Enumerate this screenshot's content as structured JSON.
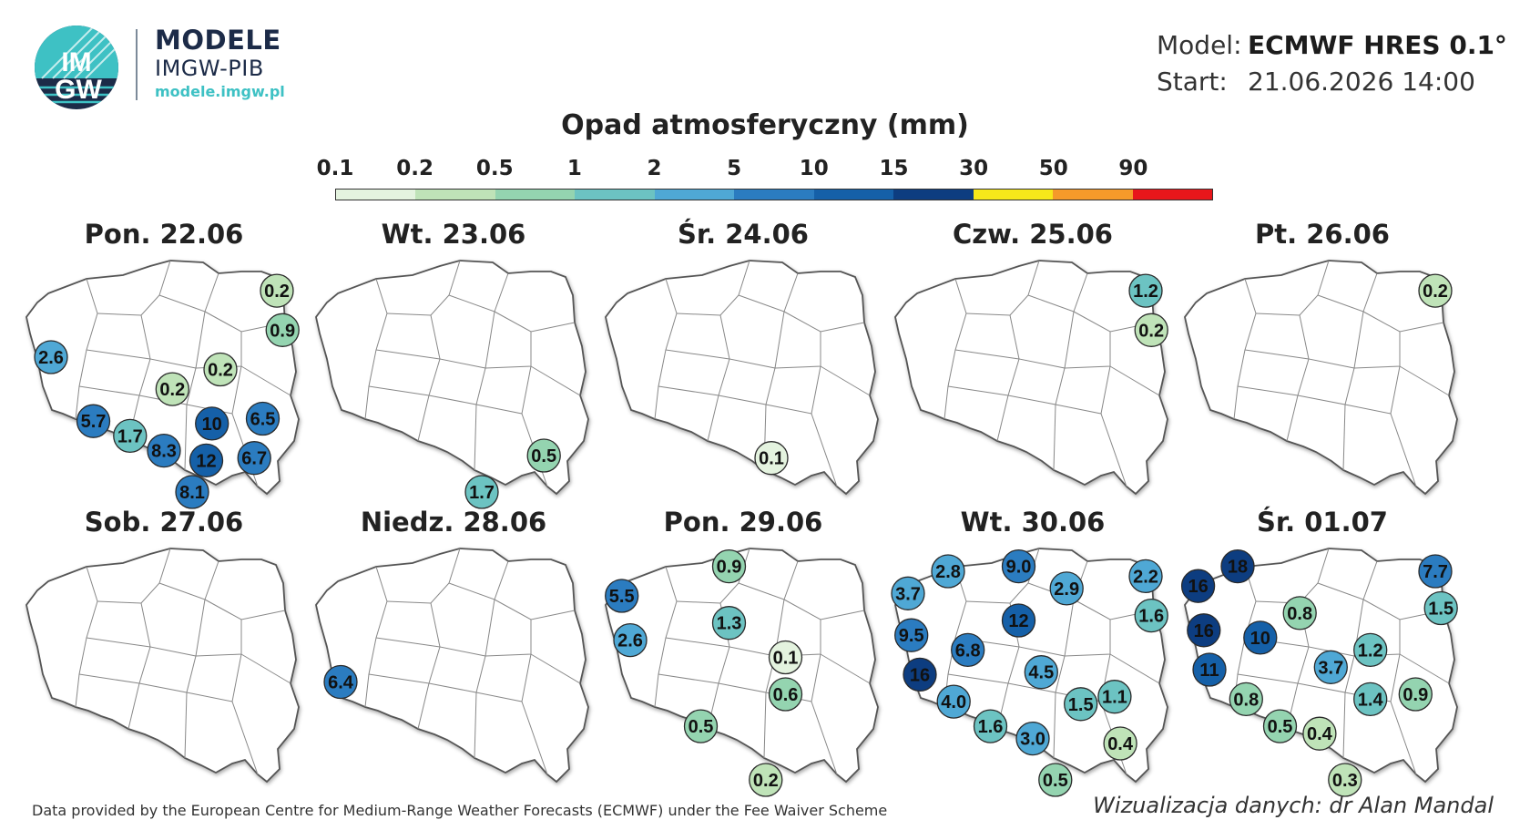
{
  "logo": {
    "badge_text_top": "IM",
    "badge_text_bottom": "GW",
    "title": "MODELE",
    "subtitle": "IMGW-PIB",
    "url": "modele.imgw.pl"
  },
  "model_info": {
    "model_label": "Model:",
    "model_value": "ECMWF HRES 0.1°",
    "start_label": "Start:",
    "start_value": "21.06.2026 14:00"
  },
  "legend": {
    "title": "Opad atmosferyczny (mm)",
    "ticks": [
      "0.1",
      "0.2",
      "0.5",
      "1",
      "2",
      "5",
      "10",
      "15",
      "30",
      "50",
      "90"
    ],
    "colors": [
      "#e4f3df",
      "#bfe3b8",
      "#94d4b0",
      "#6cc3c2",
      "#4fa8d5",
      "#2b7cc0",
      "#1560a8",
      "#0d3d80",
      "#f7e81a",
      "#f59a2a",
      "#e8161b"
    ]
  },
  "panels": [
    {
      "title": "Pon. 22.06",
      "markers": [
        {
          "label": "0.2",
          "value": 0.2,
          "x": 0.9,
          "y": 0.13
        },
        {
          "label": "0.9",
          "value": 0.9,
          "x": 0.92,
          "y": 0.29
        },
        {
          "label": "2.6",
          "value": 2.6,
          "x": 0.1,
          "y": 0.4
        },
        {
          "label": "0.2",
          "value": 0.2,
          "x": 0.7,
          "y": 0.45
        },
        {
          "label": "0.2",
          "value": 0.2,
          "x": 0.53,
          "y": 0.53
        },
        {
          "label": "6.5",
          "value": 6.5,
          "x": 0.85,
          "y": 0.65
        },
        {
          "label": "5.7",
          "value": 5.7,
          "x": 0.25,
          "y": 0.66
        },
        {
          "label": "10",
          "value": 10,
          "x": 0.67,
          "y": 0.67
        },
        {
          "label": "1.7",
          "value": 1.7,
          "x": 0.38,
          "y": 0.72
        },
        {
          "label": "8.3",
          "value": 8.3,
          "x": 0.5,
          "y": 0.78
        },
        {
          "label": "12",
          "value": 12,
          "x": 0.65,
          "y": 0.82
        },
        {
          "label": "6.7",
          "value": 6.7,
          "x": 0.82,
          "y": 0.81
        },
        {
          "label": "8.1",
          "value": 8.1,
          "x": 0.6,
          "y": 0.95
        }
      ]
    },
    {
      "title": "Wt. 23.06",
      "markers": [
        {
          "label": "0.5",
          "value": 0.5,
          "x": 0.82,
          "y": 0.8
        },
        {
          "label": "1.7",
          "value": 1.7,
          "x": 0.6,
          "y": 0.95
        }
      ]
    },
    {
      "title": "Śr. 24.06",
      "markers": [
        {
          "label": "0.1",
          "value": 0.1,
          "x": 0.6,
          "y": 0.81
        }
      ]
    },
    {
      "title": "Czw. 25.06",
      "markers": [
        {
          "label": "1.2",
          "value": 1.2,
          "x": 0.9,
          "y": 0.13
        },
        {
          "label": "0.2",
          "value": 0.2,
          "x": 0.92,
          "y": 0.29
        }
      ]
    },
    {
      "title": "Pt. 26.06",
      "markers": [
        {
          "label": "0.2",
          "value": 0.2,
          "x": 0.9,
          "y": 0.13
        }
      ]
    },
    {
      "title": "Sob. 27.06",
      "markers": []
    },
    {
      "title": "Niedz. 28.06",
      "markers": [
        {
          "label": "6.4",
          "value": 6.4,
          "x": 0.1,
          "y": 0.55
        }
      ]
    },
    {
      "title": "Pon. 29.06",
      "markers": [
        {
          "label": "0.9",
          "value": 0.9,
          "x": 0.45,
          "y": 0.08
        },
        {
          "label": "5.5",
          "value": 5.5,
          "x": 0.07,
          "y": 0.2
        },
        {
          "label": "1.3",
          "value": 1.3,
          "x": 0.45,
          "y": 0.31
        },
        {
          "label": "2.6",
          "value": 2.6,
          "x": 0.1,
          "y": 0.38
        },
        {
          "label": "0.1",
          "value": 0.1,
          "x": 0.65,
          "y": 0.45
        },
        {
          "label": "0.6",
          "value": 0.6,
          "x": 0.65,
          "y": 0.6
        },
        {
          "label": "0.5",
          "value": 0.5,
          "x": 0.35,
          "y": 0.73
        },
        {
          "label": "0.2",
          "value": 0.2,
          "x": 0.58,
          "y": 0.96
        }
      ]
    },
    {
      "title": "Wt. 30.06",
      "markers": [
        {
          "label": "2.8",
          "value": 2.8,
          "x": 0.2,
          "y": 0.1
        },
        {
          "label": "9.0",
          "value": 9.0,
          "x": 0.45,
          "y": 0.08
        },
        {
          "label": "2.2",
          "value": 2.2,
          "x": 0.9,
          "y": 0.12
        },
        {
          "label": "3.7",
          "value": 3.7,
          "x": 0.05,
          "y": 0.19
        },
        {
          "label": "2.9",
          "value": 2.9,
          "x": 0.62,
          "y": 0.17
        },
        {
          "label": "1.6",
          "value": 1.6,
          "x": 0.92,
          "y": 0.28
        },
        {
          "label": "12",
          "value": 12,
          "x": 0.45,
          "y": 0.3
        },
        {
          "label": "9.5",
          "value": 9.5,
          "x": 0.07,
          "y": 0.36
        },
        {
          "label": "6.8",
          "value": 6.8,
          "x": 0.27,
          "y": 0.42
        },
        {
          "label": "16",
          "value": 16,
          "x": 0.1,
          "y": 0.52
        },
        {
          "label": "4.5",
          "value": 4.5,
          "x": 0.53,
          "y": 0.51
        },
        {
          "label": "4.0",
          "value": 4.0,
          "x": 0.22,
          "y": 0.63
        },
        {
          "label": "1.5",
          "value": 1.5,
          "x": 0.67,
          "y": 0.64
        },
        {
          "label": "1.1",
          "value": 1.1,
          "x": 0.79,
          "y": 0.61
        },
        {
          "label": "1.6",
          "value": 1.6,
          "x": 0.35,
          "y": 0.73
        },
        {
          "label": "3.0",
          "value": 3.0,
          "x": 0.5,
          "y": 0.78
        },
        {
          "label": "0.4",
          "value": 0.4,
          "x": 0.81,
          "y": 0.8
        },
        {
          "label": "0.5",
          "value": 0.5,
          "x": 0.58,
          "y": 0.96
        }
      ]
    },
    {
      "title": "Śr. 01.07",
      "markers": [
        {
          "label": "18",
          "value": 18,
          "x": 0.2,
          "y": 0.08
        },
        {
          "label": "7.7",
          "value": 7.7,
          "x": 0.9,
          "y": 0.1
        },
        {
          "label": "16",
          "value": 16,
          "x": 0.06,
          "y": 0.16
        },
        {
          "label": "0.8",
          "value": 0.8,
          "x": 0.42,
          "y": 0.27
        },
        {
          "label": "1.5",
          "value": 1.5,
          "x": 0.92,
          "y": 0.25
        },
        {
          "label": "16",
          "value": 16,
          "x": 0.08,
          "y": 0.34
        },
        {
          "label": "10",
          "value": 10,
          "x": 0.28,
          "y": 0.37
        },
        {
          "label": "1.2",
          "value": 1.2,
          "x": 0.67,
          "y": 0.42
        },
        {
          "label": "11",
          "value": 11,
          "x": 0.1,
          "y": 0.5
        },
        {
          "label": "3.7",
          "value": 3.7,
          "x": 0.53,
          "y": 0.49
        },
        {
          "label": "0.8",
          "value": 0.8,
          "x": 0.23,
          "y": 0.62
        },
        {
          "label": "1.4",
          "value": 1.4,
          "x": 0.67,
          "y": 0.62
        },
        {
          "label": "0.9",
          "value": 0.9,
          "x": 0.83,
          "y": 0.6
        },
        {
          "label": "0.5",
          "value": 0.5,
          "x": 0.35,
          "y": 0.73
        },
        {
          "label": "0.4",
          "value": 0.4,
          "x": 0.49,
          "y": 0.76
        },
        {
          "label": "0.3",
          "value": 0.3,
          "x": 0.58,
          "y": 0.96
        }
      ]
    }
  ],
  "footer": {
    "left": "Data provided by the European Centre for Medium-Range Weather Forecasts (ECMWF) under the Fee Waiver Scheme",
    "right": "Wizualizacja danych: dr Alan Mandal"
  }
}
